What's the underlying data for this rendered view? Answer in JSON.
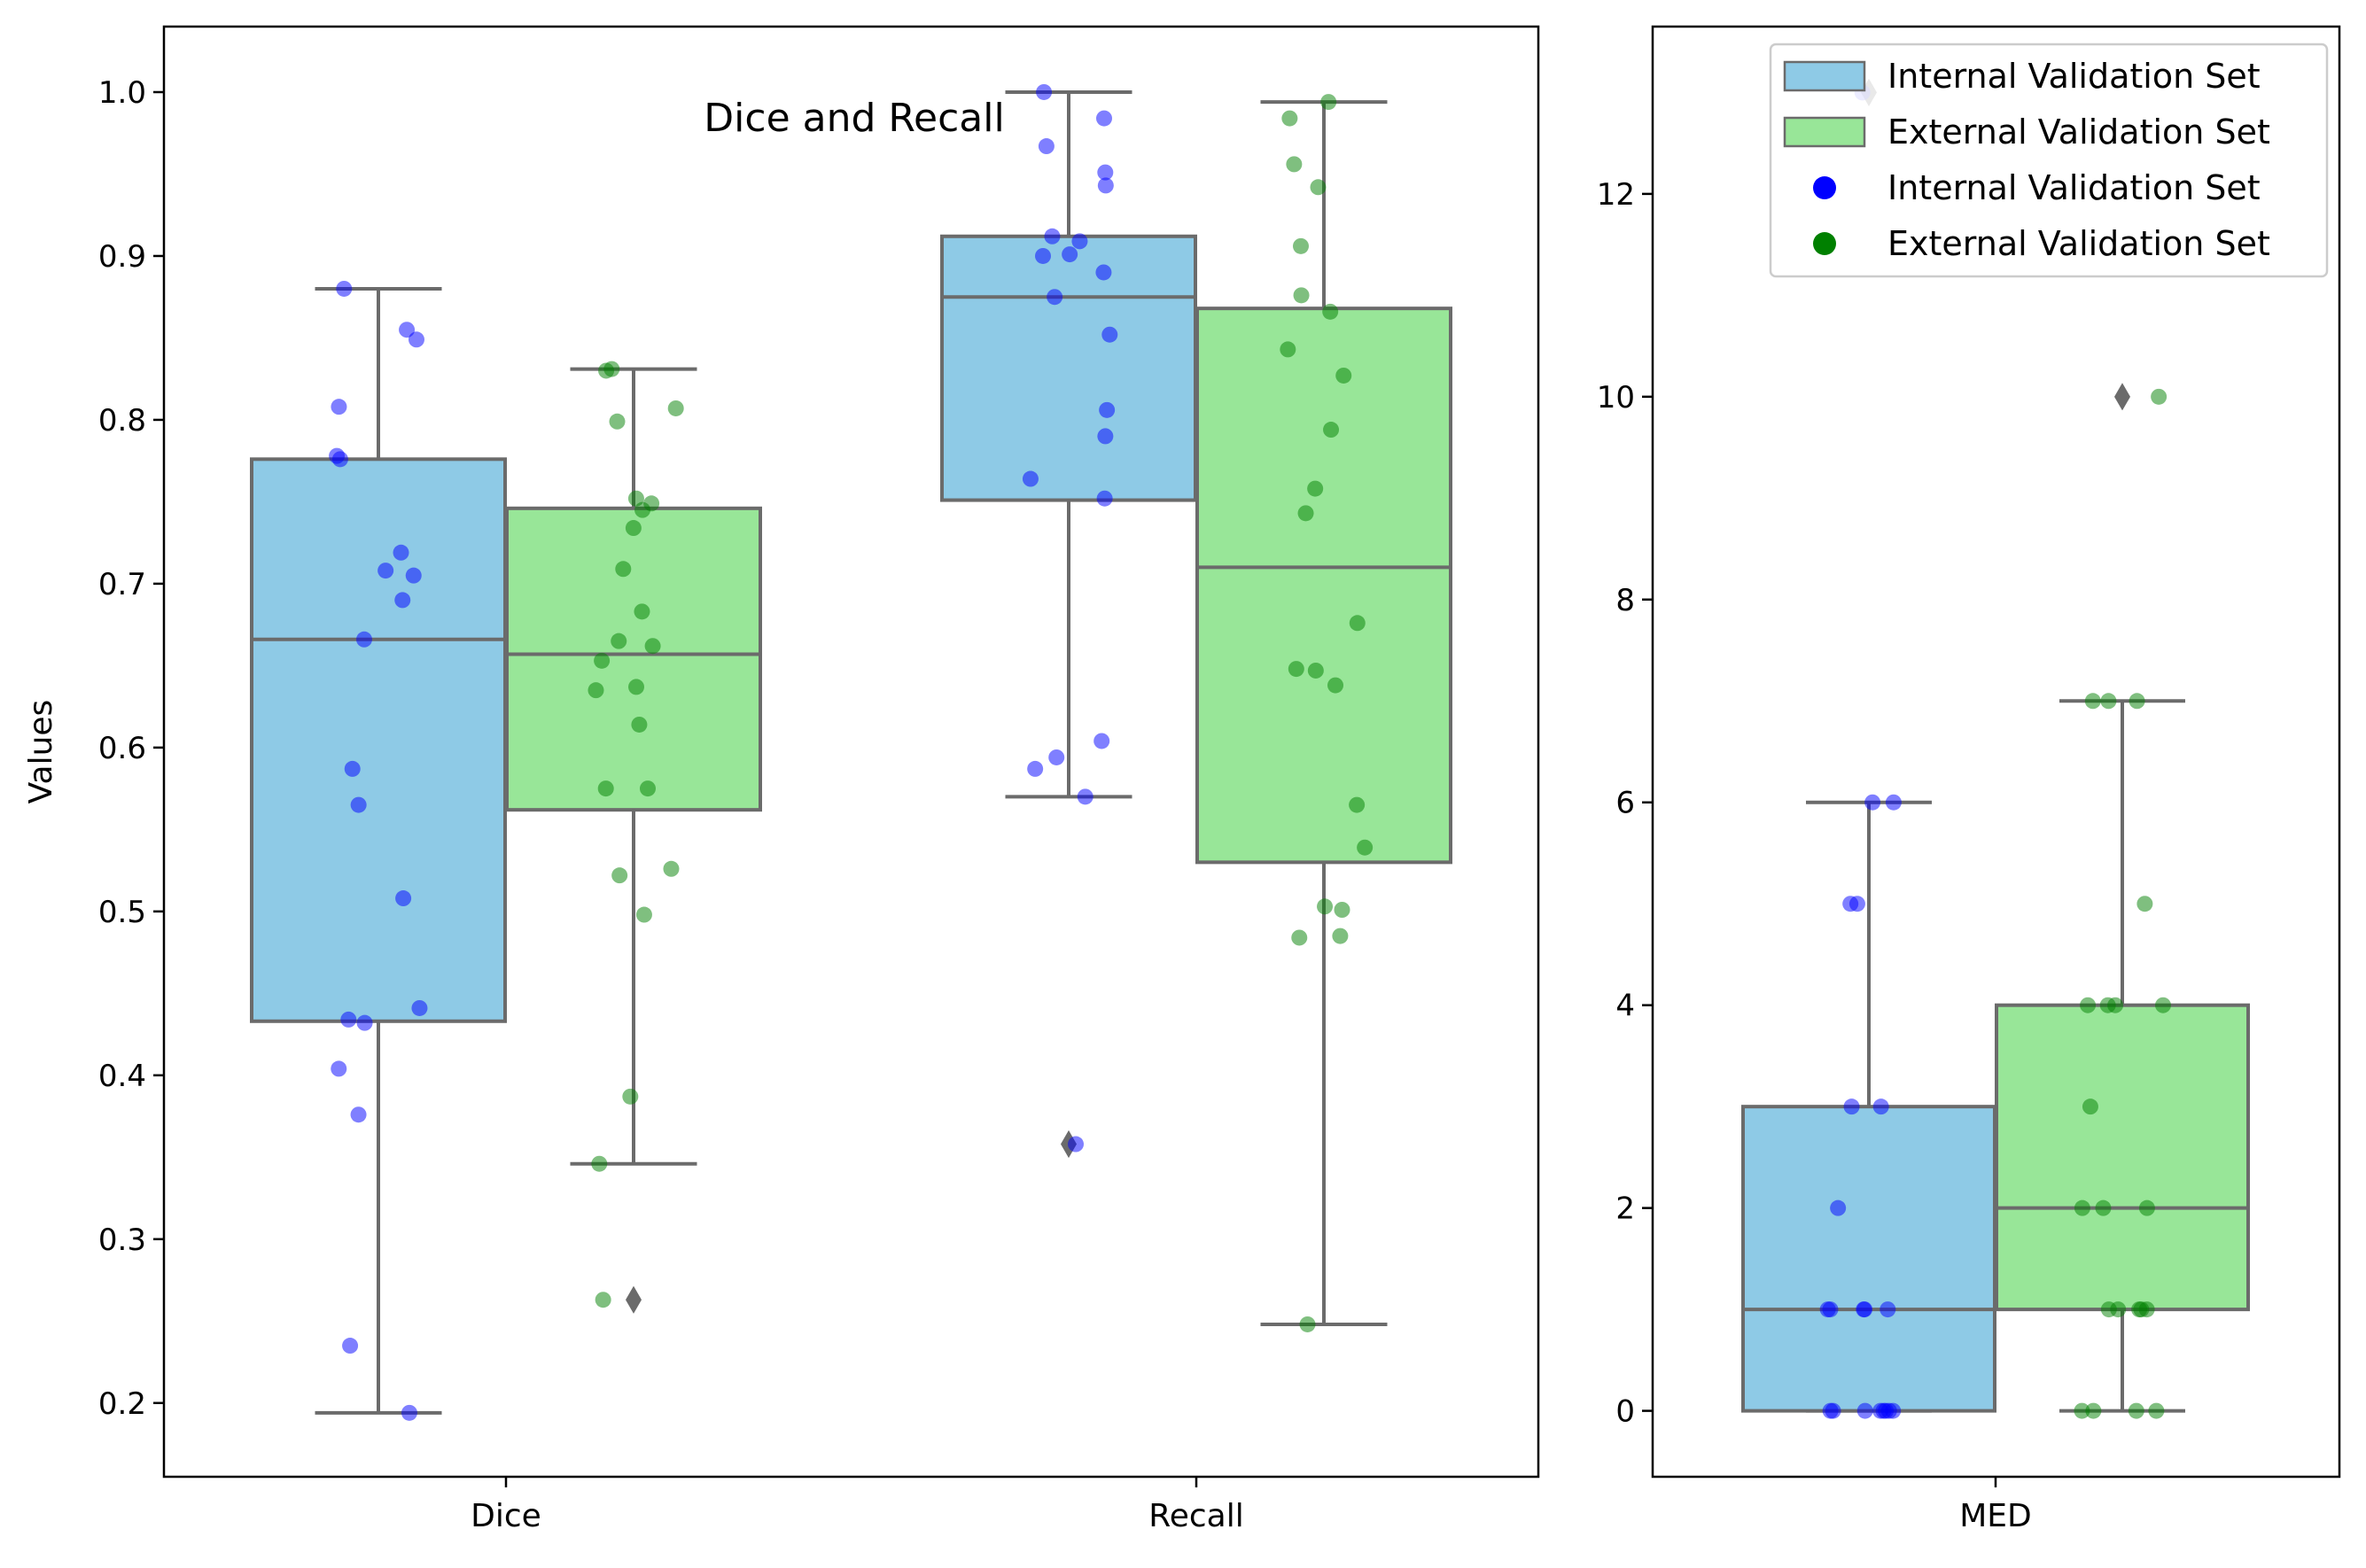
{
  "chart_data": [
    {
      "type": "box",
      "title": "Dice and Recall",
      "xlabel": "",
      "ylabel": "Values",
      "ylim": [
        0.155,
        1.04
      ],
      "yticks": [
        0.2,
        0.3,
        0.4,
        0.5,
        0.6,
        0.7,
        0.8,
        0.9,
        1.0
      ],
      "ytick_labels": [
        "0.2",
        "0.3",
        "0.4",
        "0.5",
        "0.6",
        "0.7",
        "0.8",
        "0.9",
        "1.0"
      ],
      "categories": [
        "Dice",
        "Recall"
      ],
      "series": [
        {
          "name": "Internal Validation Set",
          "color": "#8ecae6",
          "point_color": "#0000ff",
          "boxes": [
            {
              "q1": 0.433,
              "median": 0.666,
              "q3": 0.776,
              "whisker_low": 0.194,
              "whisker_high": 0.88,
              "outliers": [],
              "points": [
                0.88,
                0.855,
                0.849,
                0.808,
                0.778,
                0.776,
                0.719,
                0.708,
                0.705,
                0.69,
                0.666,
                0.587,
                0.565,
                0.508,
                0.441,
                0.434,
                0.432,
                0.404,
                0.376,
                0.235,
                0.194
              ]
            },
            {
              "q1": 0.751,
              "median": 0.875,
              "q3": 0.912,
              "whisker_low": 0.57,
              "whisker_high": 1.0,
              "outliers": [
                0.358
              ],
              "points": [
                1.0,
                0.984,
                0.967,
                0.951,
                0.943,
                0.912,
                0.909,
                0.901,
                0.9,
                0.89,
                0.875,
                0.852,
                0.806,
                0.79,
                0.764,
                0.752,
                0.604,
                0.594,
                0.587,
                0.57,
                0.358
              ]
            }
          ]
        },
        {
          "name": "External Validation Set",
          "color": "#98e698",
          "point_color": "#008000",
          "boxes": [
            {
              "q1": 0.562,
              "median": 0.657,
              "q3": 0.746,
              "whisker_low": 0.346,
              "whisker_high": 0.831,
              "outliers": [
                0.263
              ],
              "points": [
                0.831,
                0.83,
                0.807,
                0.799,
                0.752,
                0.749,
                0.745,
                0.734,
                0.709,
                0.683,
                0.665,
                0.662,
                0.653,
                0.637,
                0.635,
                0.614,
                0.575,
                0.575,
                0.526,
                0.522,
                0.498,
                0.387,
                0.346,
                0.263
              ]
            },
            {
              "q1": 0.53,
              "median": 0.71,
              "q3": 0.868,
              "whisker_low": 0.248,
              "whisker_high": 0.994,
              "outliers": [],
              "points": [
                0.994,
                0.984,
                0.956,
                0.942,
                0.906,
                0.876,
                0.866,
                0.843,
                0.827,
                0.794,
                0.758,
                0.743,
                0.676,
                0.648,
                0.647,
                0.638,
                0.565,
                0.539,
                0.503,
                0.501,
                0.485,
                0.484,
                0.248
              ]
            }
          ]
        }
      ]
    },
    {
      "type": "box",
      "title": "",
      "xlabel": "",
      "ylabel": "",
      "ylim": [
        -0.65,
        13.65
      ],
      "yticks": [
        0,
        2,
        4,
        6,
        8,
        10,
        12
      ],
      "ytick_labels": [
        "0",
        "2",
        "4",
        "6",
        "8",
        "10",
        "12"
      ],
      "categories": [
        "MED"
      ],
      "series": [
        {
          "name": "Internal Validation Set",
          "color": "#8ecae6",
          "point_color": "#0000ff",
          "boxes": [
            {
              "q1": 0,
              "median": 1,
              "q3": 3,
              "whisker_low": 0,
              "whisker_high": 6,
              "outliers": [
                13
              ],
              "points": [
                13,
                6,
                6,
                5,
                5,
                3,
                3,
                2,
                1,
                1,
                1,
                1,
                1,
                0,
                0,
                0,
                0,
                0,
                0,
                0,
                0
              ]
            }
          ]
        },
        {
          "name": "External Validation Set",
          "color": "#98e698",
          "point_color": "#008000",
          "boxes": [
            {
              "q1": 1,
              "median": 2,
              "q3": 4,
              "whisker_low": 0,
              "whisker_high": 7,
              "outliers": [
                10
              ],
              "points": [
                10,
                7,
                7,
                7,
                5,
                4,
                4,
                4,
                4,
                3,
                2,
                2,
                2,
                1,
                1,
                1,
                1,
                1,
                0,
                0,
                0,
                0
              ]
            }
          ]
        }
      ],
      "legend": {
        "placement": "top-right",
        "entries": [
          {
            "label": "Internal Validation Set",
            "kind": "patch",
            "color": "#8ecae6"
          },
          {
            "label": "External Validation Set",
            "kind": "patch",
            "color": "#98e698"
          },
          {
            "label": "Internal Validation Set",
            "kind": "marker",
            "color": "#0000ff"
          },
          {
            "label": "External Validation Set",
            "kind": "marker",
            "color": "#008000"
          }
        ]
      }
    }
  ]
}
